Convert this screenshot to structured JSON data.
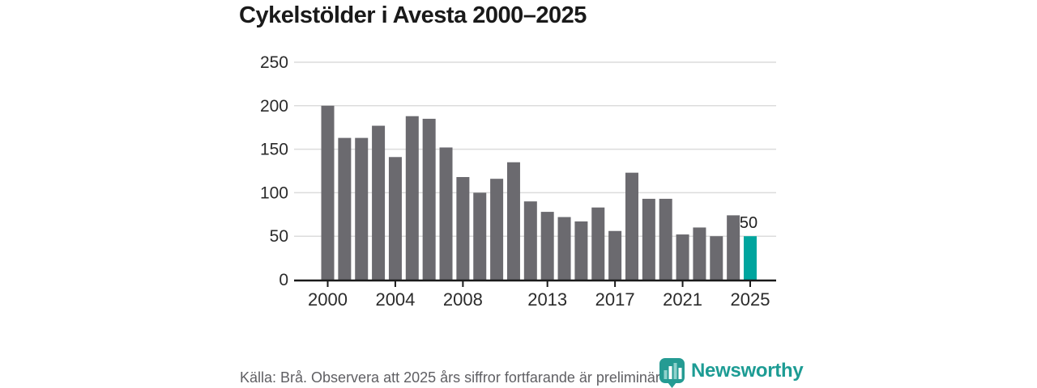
{
  "title": "Cykelstölder i Avesta 2000–2025",
  "source_note": "Källa: Brå. Observera att 2025 års siffror fortfarande är preliminära.",
  "branding": {
    "name": "Newsworthy",
    "icon": "bar-chart-badge-icon",
    "color": "#1d9c94"
  },
  "colors": {
    "bar": "#6b6a6f",
    "highlight": "#00a59e",
    "gridline": "#dcdcdc",
    "axis": "#1a1a1a",
    "tick_label": "#2b2b2b",
    "value_label": "#1f1f1f"
  },
  "chart_data": {
    "type": "bar",
    "title": "Cykelstölder i Avesta 2000–2025",
    "xlabel": "",
    "ylabel": "",
    "x": [
      2000,
      2001,
      2002,
      2003,
      2004,
      2005,
      2006,
      2007,
      2008,
      2009,
      2010,
      2011,
      2012,
      2013,
      2014,
      2015,
      2016,
      2017,
      2018,
      2019,
      2020,
      2021,
      2022,
      2023,
      2024,
      2025
    ],
    "values": [
      200,
      163,
      163,
      177,
      141,
      188,
      185,
      152,
      118,
      100,
      116,
      135,
      90,
      78,
      72,
      67,
      83,
      56,
      123,
      93,
      93,
      52,
      60,
      50,
      74,
      50
    ],
    "highlight_x": 2025,
    "data_label": {
      "x": 2025,
      "text": "50"
    },
    "ylim": [
      0,
      250
    ],
    "yticks": [
      0,
      50,
      100,
      150,
      200,
      250
    ],
    "xticks": [
      2000,
      2004,
      2008,
      2013,
      2017,
      2021,
      2025
    ],
    "grid": true,
    "legend": false
  }
}
